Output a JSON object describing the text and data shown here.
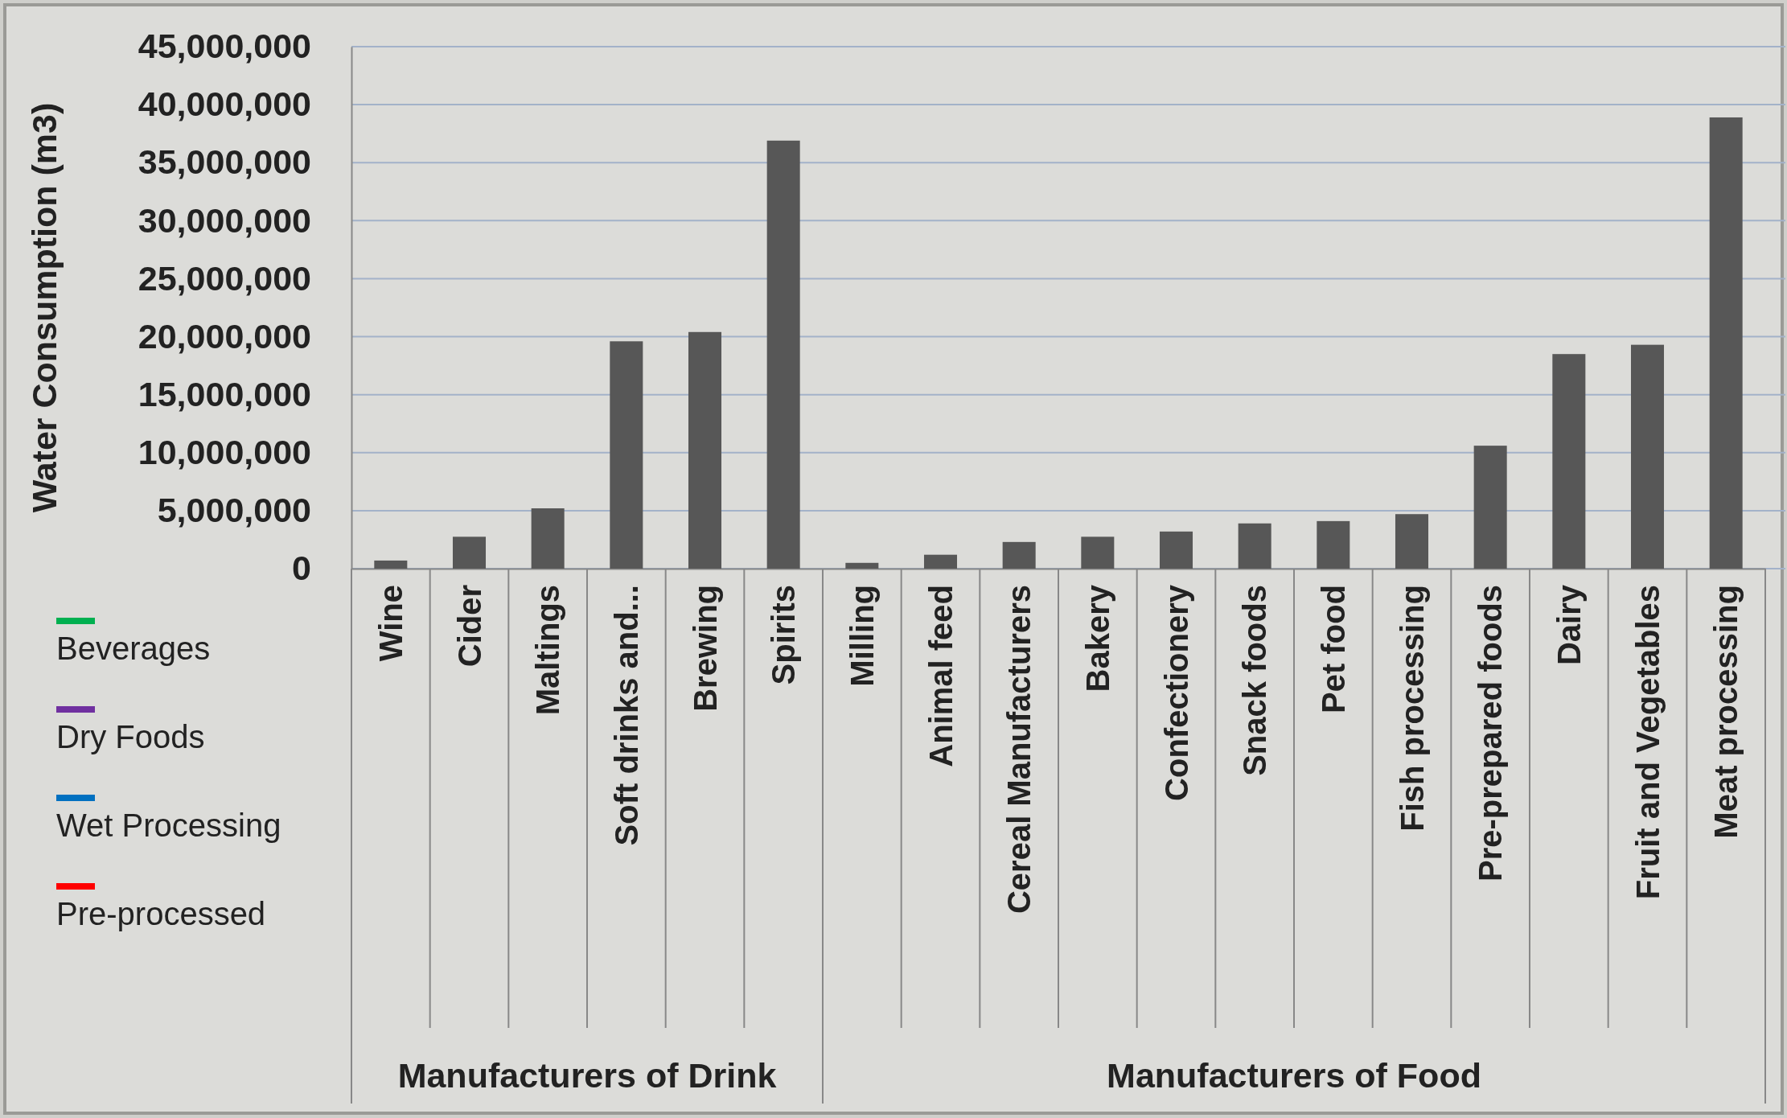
{
  "chart_data": {
    "type": "bar",
    "ylabel": "Water Consumption (m3)",
    "categories": [
      "Wine",
      "Cider",
      "Maltings",
      "Soft drinks and...",
      "Brewing",
      "Spirits",
      "Milling",
      "Animal feed",
      "Cereal Manufacturers",
      "Bakery",
      "Confectionery",
      "Snack foods",
      "Pet food",
      "Fish processing",
      "Pre-prepared foods",
      "Dairy",
      "Fruit and Vegetables",
      "Meat processing"
    ],
    "series": [
      {
        "color": "#575757",
        "values": [
          700000,
          2750000,
          5200000,
          19600000,
          20400000,
          36900000,
          500000,
          1200000,
          2300000,
          2750000,
          3200000,
          3900000,
          4100000,
          4700000,
          10600000,
          18500000,
          19300000,
          38900000
        ]
      },
      {
        "type": "line",
        "name": "Beverages",
        "color": "#00b050",
        "values": [
          null,
          null,
          null,
          null,
          null,
          null,
          null,
          null,
          null,
          null,
          null,
          null,
          null,
          null,
          null,
          null,
          null,
          null
        ]
      },
      {
        "type": "line",
        "name": "Dry Foods",
        "color": "#7030a0",
        "values": [
          null,
          null,
          null,
          null,
          null,
          null,
          null,
          null,
          null,
          null,
          null,
          null,
          null,
          null,
          null,
          null,
          null,
          null
        ]
      },
      {
        "type": "line",
        "name": "Wet Processing",
        "color": "#0070c0",
        "values": [
          null,
          null,
          null,
          null,
          null,
          null,
          null,
          null,
          null,
          null,
          null,
          null,
          null,
          null,
          null,
          null,
          null,
          null
        ]
      },
      {
        "type": "line",
        "name": "Pre-processed",
        "color": "#ff0000",
        "values": [
          null,
          null,
          null,
          null,
          null,
          null,
          null,
          null,
          null,
          null,
          null,
          null,
          null,
          null,
          null,
          null,
          null,
          null
        ]
      }
    ],
    "annotations": [
      "Manufacturers of Drink",
      "Manufacturers of Food"
    ],
    "ylim": [
      0,
      45000000
    ],
    "yticks": [
      {
        "value": 0,
        "label": "0"
      },
      {
        "value": 5000000,
        "label": "5,000,000"
      },
      {
        "value": 10000000,
        "label": "10,000,000"
      },
      {
        "value": 15000000,
        "label": "15,000,000"
      },
      {
        "value": 20000000,
        "label": "20,000,000"
      },
      {
        "value": 25000000,
        "label": "25,000,000"
      },
      {
        "value": 30000000,
        "label": "30,000,000"
      },
      {
        "value": 35000000,
        "label": "35,000,000"
      },
      {
        "value": 40000000,
        "label": "40,000,000"
      },
      {
        "value": 45000000,
        "label": "45,000,000"
      }
    ],
    "grid": "y",
    "legend": "left"
  }
}
